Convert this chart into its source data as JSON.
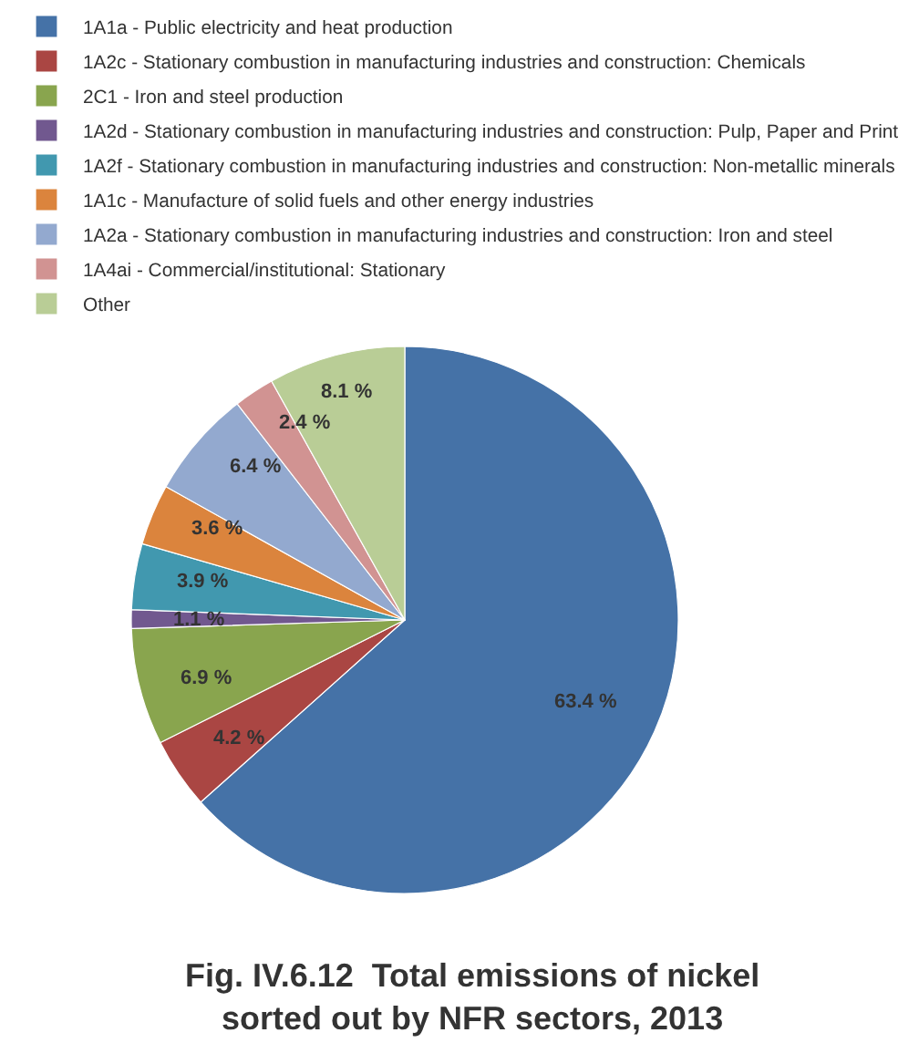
{
  "chart_data": {
    "type": "pie",
    "title": "Fig. IV.6.12  Total emissions of nickel\nsorted out by NFR sectors, 2013",
    "categories": [
      "1A1a - Public electricity and heat production",
      "1A2c - Stationary combustion in manufacturing industries and construction: Chemicals",
      "2C1 - Iron and steel production",
      "1A2d - Stationary combustion in manufacturing industries and construction: Pulp, Paper and Print",
      "1A2f - Stationary combustion in manufacturing industries and construction: Non-metallic minerals",
      "1A1c - Manufacture of solid fuels and other energy industries",
      "1A2a - Stationary combustion in manufacturing industries and construction: Iron and steel",
      "1A4ai - Commercial/institutional: Stationary",
      "Other"
    ],
    "values": [
      63.4,
      4.2,
      6.9,
      1.1,
      3.9,
      3.6,
      6.4,
      2.4,
      8.1
    ],
    "colors": [
      "#4572a7",
      "#aa4643",
      "#89a54e",
      "#71588f",
      "#4198af",
      "#db843d",
      "#93a9cf",
      "#d19392",
      "#b9cd96"
    ],
    "value_labels": [
      "63.4 %",
      "4.2 %",
      "6.9 %",
      "1.1 %",
      "3.9 %",
      "3.6 %",
      "6.4 %",
      "2.4 %",
      "8.1 %"
    ],
    "legend": "top"
  }
}
